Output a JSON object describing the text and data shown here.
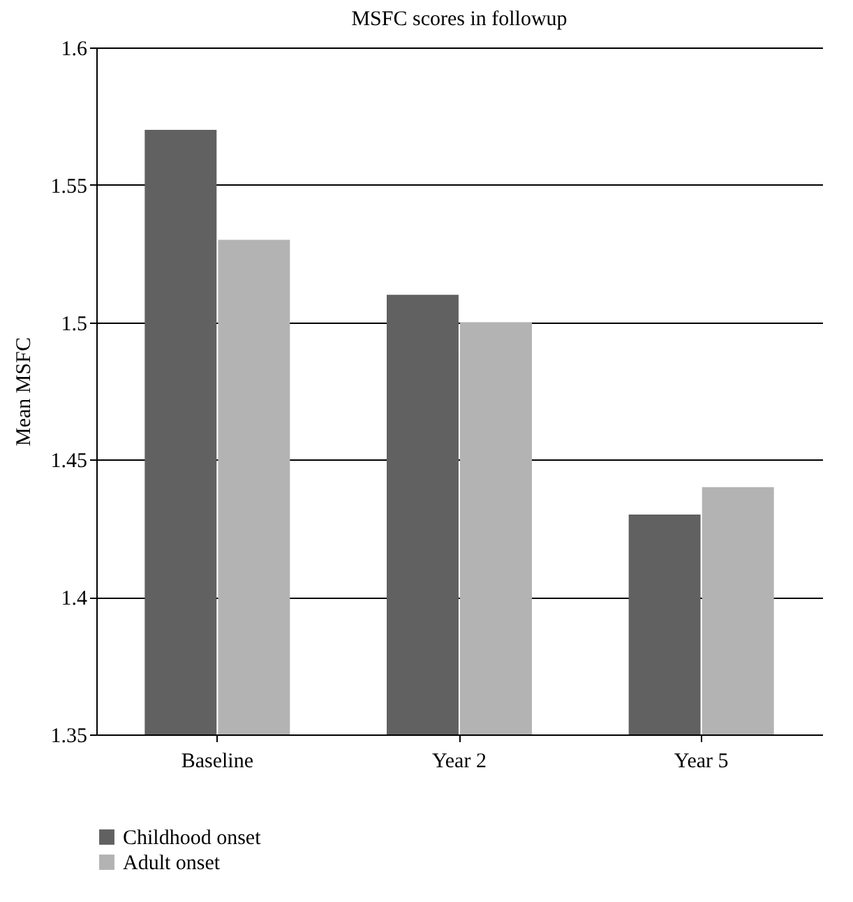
{
  "chart_data": {
    "type": "bar",
    "title": "MSFC scores in followup",
    "ylabel": "Mean MSFC",
    "categories": [
      "Baseline",
      "Year 2",
      "Year 5"
    ],
    "series": [
      {
        "name": "Childhood onset",
        "color": "#616161",
        "values": [
          1.57,
          1.51,
          1.43
        ]
      },
      {
        "name": "Adult onset",
        "color": "#b3b3b3",
        "values": [
          1.53,
          1.5,
          1.44
        ]
      }
    ],
    "ylim": [
      1.35,
      1.6
    ],
    "yticks": [
      1.35,
      1.4,
      1.45,
      1.5,
      1.55,
      1.6
    ],
    "grid": "y",
    "legend": "bottom left"
  }
}
